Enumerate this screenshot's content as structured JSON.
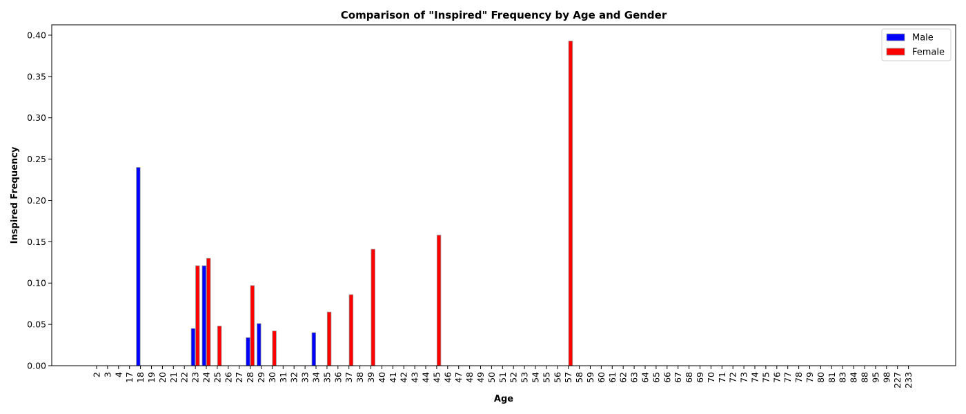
{
  "chart_data": {
    "type": "bar",
    "title": "Comparison of \"Inspired\" Frequency by Age and Gender",
    "xlabel": "Age",
    "ylabel": "Inspired Frequency",
    "ylim": [
      0,
      0.4125
    ],
    "yticks": [
      0.0,
      0.05,
      0.1,
      0.15,
      0.2,
      0.25,
      0.3,
      0.35,
      0.4
    ],
    "legend_position": "top-right",
    "categories": [
      "2",
      "3",
      "4",
      "17",
      "18",
      "19",
      "20",
      "21",
      "22",
      "23",
      "24",
      "25",
      "26",
      "27",
      "28",
      "29",
      "30",
      "31",
      "32",
      "33",
      "34",
      "35",
      "36",
      "37",
      "38",
      "39",
      "40",
      "41",
      "42",
      "43",
      "44",
      "45",
      "46",
      "47",
      "48",
      "49",
      "50",
      "51",
      "52",
      "53",
      "54",
      "55",
      "56",
      "57",
      "58",
      "59",
      "60",
      "61",
      "62",
      "63",
      "64",
      "65",
      "66",
      "67",
      "68",
      "69",
      "70",
      "71",
      "72",
      "73",
      "74",
      "75",
      "76",
      "77",
      "78",
      "79",
      "80",
      "81",
      "83",
      "84",
      "88",
      "95",
      "98",
      "227",
      "233"
    ],
    "series": [
      {
        "name": "Male",
        "color": "#0000ff",
        "values": [
          0,
          0,
          0,
          0,
          0.24,
          0,
          0,
          0,
          0,
          0.045,
          0.121,
          0,
          0,
          0,
          0.034,
          0.051,
          0,
          0,
          0,
          0,
          0.04,
          0,
          0,
          0,
          0,
          0,
          0,
          0,
          0,
          0,
          0,
          0,
          0,
          0,
          0,
          0,
          0,
          0,
          0,
          0,
          0,
          0,
          0,
          0,
          0,
          0,
          0,
          0,
          0,
          0,
          0,
          0,
          0,
          0,
          0,
          0,
          0,
          0,
          0,
          0,
          0,
          0,
          0,
          0,
          0,
          0,
          0,
          0,
          0,
          0,
          0,
          0,
          0,
          0,
          0
        ]
      },
      {
        "name": "Female",
        "color": "#ff0000",
        "values": [
          0,
          0,
          0,
          0,
          0,
          0,
          0,
          0,
          0,
          0.121,
          0.13,
          0.048,
          0,
          0,
          0.097,
          0,
          0.042,
          0,
          0,
          0,
          0,
          0.065,
          0,
          0.086,
          0,
          0.141,
          0,
          0,
          0,
          0,
          0,
          0.158,
          0,
          0,
          0,
          0,
          0,
          0,
          0,
          0,
          0,
          0,
          0,
          0.393,
          0,
          0,
          0,
          0,
          0,
          0,
          0,
          0,
          0,
          0,
          0,
          0,
          0,
          0,
          0,
          0,
          0,
          0,
          0,
          0,
          0,
          0,
          0,
          0,
          0,
          0,
          0,
          0,
          0,
          0,
          0
        ]
      }
    ]
  }
}
